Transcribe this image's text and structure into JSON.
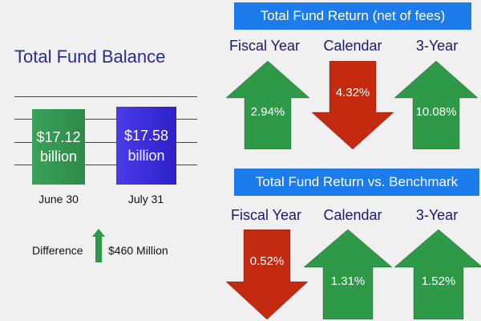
{
  "balance": {
    "title": "Total Fund Balance",
    "difference_label": "Difference",
    "difference_value": "$460 Million",
    "difference_direction": "up"
  },
  "returns": {
    "title": "Total Fund Return (net of fees)",
    "items": [
      {
        "label": "Fiscal Year",
        "value": "2.94%",
        "direction": "up"
      },
      {
        "label": "Calendar",
        "value": "4.32%",
        "direction": "down"
      },
      {
        "label": "3-Year",
        "value": "10.08%",
        "direction": "up"
      }
    ]
  },
  "benchmark": {
    "title": "Total Fund Return vs. Benchmark",
    "items": [
      {
        "label": "Fiscal Year",
        "value": "0.52%",
        "direction": "down"
      },
      {
        "label": "Calendar",
        "value": "1.31%",
        "direction": "up"
      },
      {
        "label": "3-Year",
        "value": "1.52%",
        "direction": "up"
      }
    ]
  },
  "colors": {
    "up": "#2e9a48",
    "down": "#c42a10",
    "banner": "#1c7cec",
    "title": "#2a2a9a",
    "june_bar": "#2e8a48",
    "july_bar": "#2c20c8"
  },
  "chart_data": {
    "type": "bar",
    "categories": [
      "June 30",
      "July 31"
    ],
    "values": [
      17.12,
      17.58
    ],
    "value_labels": [
      "$17.12\nbillion",
      "$17.58\nbillion"
    ],
    "title": "Total Fund Balance",
    "xlabel": "",
    "ylabel": "",
    "grid": true
  }
}
